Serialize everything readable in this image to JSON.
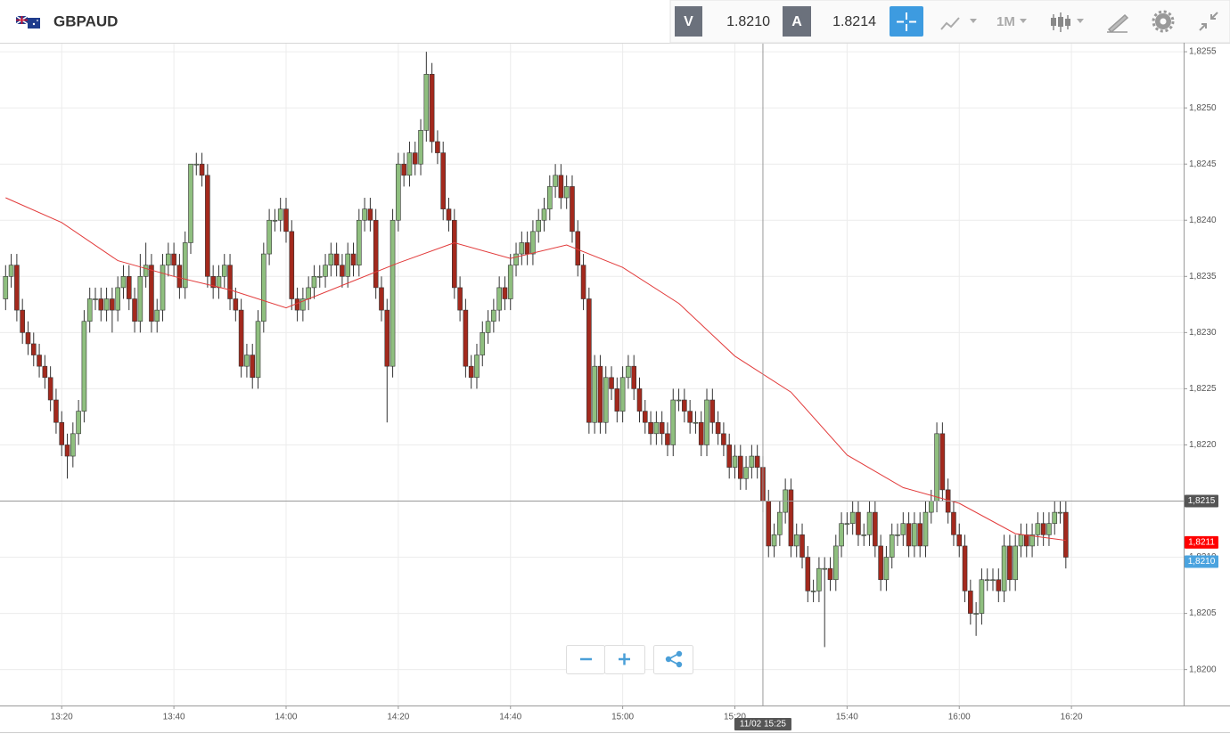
{
  "header": {
    "symbol": "GBPAUD",
    "sell_label": "V",
    "sell_price": "1.8210",
    "buy_label": "A",
    "buy_price": "1.8214",
    "timeframe": "1M"
  },
  "chart_data": {
    "type": "candlestick",
    "x": [
      "13:10",
      "13:11",
      "13:12",
      "13:13",
      "13:14",
      "13:15",
      "13:16",
      "13:17",
      "13:18",
      "13:19",
      "13:20",
      "13:21",
      "13:22",
      "13:23",
      "13:24",
      "13:25",
      "13:26",
      "13:27",
      "13:28",
      "13:29",
      "13:30",
      "13:31",
      "13:32",
      "13:33",
      "13:34",
      "13:35",
      "13:36",
      "13:37",
      "13:38",
      "13:39",
      "13:40",
      "13:41",
      "13:42",
      "13:43",
      "13:44",
      "13:45",
      "13:46",
      "13:47",
      "13:48",
      "13:49",
      "13:50",
      "13:51",
      "13:52",
      "13:53",
      "13:54",
      "13:55",
      "13:56",
      "13:57",
      "13:58",
      "13:59",
      "14:00",
      "14:01",
      "14:02",
      "14:03",
      "14:04",
      "14:05",
      "14:06",
      "14:07",
      "14:08",
      "14:09",
      "14:10",
      "14:11",
      "14:12",
      "14:13",
      "14:14",
      "14:15",
      "14:16",
      "14:17",
      "14:18",
      "14:19",
      "14:20",
      "14:21",
      "14:22",
      "14:23",
      "14:24",
      "14:25",
      "14:26",
      "14:27",
      "14:28",
      "14:29",
      "14:30",
      "14:31",
      "14:32",
      "14:33",
      "14:34",
      "14:35",
      "14:36",
      "14:37",
      "14:38",
      "14:39",
      "14:40",
      "14:41",
      "14:42",
      "14:43",
      "14:44",
      "14:45",
      "14:46",
      "14:47",
      "14:48",
      "14:49",
      "14:50",
      "14:51",
      "14:52",
      "14:53",
      "14:54",
      "14:55",
      "14:56",
      "14:57",
      "14:58",
      "14:59",
      "15:00",
      "15:01",
      "15:02",
      "15:03",
      "15:04",
      "15:05",
      "15:06",
      "15:07",
      "15:08",
      "15:09",
      "15:10",
      "15:11",
      "15:12",
      "15:13",
      "15:14",
      "15:15",
      "15:16",
      "15:17",
      "15:18",
      "15:19",
      "15:20",
      "15:21",
      "15:22",
      "15:23",
      "15:24",
      "15:25",
      "15:26",
      "15:27",
      "15:28",
      "15:29",
      "15:30",
      "15:31",
      "15:32",
      "15:33",
      "15:34",
      "15:35",
      "15:36",
      "15:37",
      "15:38",
      "15:39",
      "15:40",
      "15:41",
      "15:42",
      "15:43",
      "15:44",
      "15:45",
      "15:46",
      "15:47",
      "15:48",
      "15:49",
      "15:50",
      "15:51",
      "15:52",
      "15:53",
      "15:54",
      "15:55",
      "15:56",
      "15:57",
      "15:58",
      "15:59",
      "16:00",
      "16:01",
      "16:02",
      "16:03",
      "16:04",
      "16:05",
      "16:06",
      "16:07",
      "16:08",
      "16:09",
      "16:10",
      "16:11",
      "16:12",
      "16:13",
      "16:14",
      "16:15",
      "16:16",
      "16:17",
      "16:18",
      "16:19"
    ],
    "open": [
      1.8233,
      1.8235,
      1.8236,
      1.8232,
      1.823,
      1.8229,
      1.8228,
      1.8227,
      1.8226,
      1.8224,
      1.8222,
      1.822,
      1.8219,
      1.8221,
      1.8223,
      1.8231,
      1.8233,
      1.8233,
      1.8232,
      1.8233,
      1.8232,
      1.8234,
      1.8235,
      1.8233,
      1.8231,
      1.8235,
      1.8236,
      1.8231,
      1.8232,
      1.8236,
      1.8237,
      1.8236,
      1.8234,
      1.8238,
      1.8245,
      1.8245,
      1.8244,
      1.8235,
      1.8234,
      1.8235,
      1.8236,
      1.8233,
      1.8232,
      1.8227,
      1.8228,
      1.8226,
      1.8231,
      1.8237,
      1.824,
      1.824,
      1.8241,
      1.8239,
      1.8233,
      1.8232,
      1.8233,
      1.8234,
      1.8235,
      1.8235,
      1.8236,
      1.8237,
      1.8236,
      1.8235,
      1.8237,
      1.8236,
      1.824,
      1.8241,
      1.824,
      1.8234,
      1.8232,
      1.8227,
      1.824,
      1.8245,
      1.8244,
      1.8246,
      1.8245,
      1.8248,
      1.8253,
      1.8247,
      1.8246,
      1.8241,
      1.824,
      1.8234,
      1.8232,
      1.8227,
      1.8226,
      1.8228,
      1.823,
      1.8231,
      1.8232,
      1.8234,
      1.8233,
      1.8236,
      1.8237,
      1.8238,
      1.8237,
      1.8239,
      1.824,
      1.8241,
      1.8243,
      1.8244,
      1.8242,
      1.8243,
      1.8239,
      1.8236,
      1.8233,
      1.8222,
      1.8227,
      1.8222,
      1.8226,
      1.8225,
      1.8223,
      1.8226,
      1.8227,
      1.8225,
      1.8223,
      1.8222,
      1.8221,
      1.8222,
      1.8221,
      1.822,
      1.8224,
      1.8224,
      1.8223,
      1.8222,
      1.8222,
      1.822,
      1.8224,
      1.8222,
      1.8221,
      1.822,
      1.8218,
      1.8219,
      1.8217,
      1.8218,
      1.8219,
      1.8218,
      1.8215,
      1.8211,
      1.8212,
      1.8214,
      1.8216,
      1.8211,
      1.8212,
      1.821,
      1.8207,
      1.8207,
      1.8209,
      1.8209,
      1.8208,
      1.8211,
      1.8213,
      1.8213,
      1.8214,
      1.8212,
      1.8212,
      1.8214,
      1.8211,
      1.8208,
      1.821,
      1.8212,
      1.8212,
      1.8213,
      1.8211,
      1.8213,
      1.8211,
      1.8214,
      1.8215,
      1.8221,
      1.8216,
      1.8214,
      1.8212,
      1.8211,
      1.8207,
      1.8205,
      1.8205,
      1.8208,
      1.8208,
      1.8208,
      1.8207,
      1.8211,
      1.8208,
      1.8211,
      1.8212,
      1.8211,
      1.8212,
      1.8213,
      1.8212,
      1.8213,
      1.8214,
      1.8214
    ],
    "high": [
      1.8236,
      1.8237,
      1.8237,
      1.8233,
      1.8231,
      1.823,
      1.8229,
      1.8228,
      1.8227,
      1.8225,
      1.8223,
      1.8221,
      1.8222,
      1.8224,
      1.8232,
      1.8234,
      1.8234,
      1.8234,
      1.8234,
      1.8234,
      1.8235,
      1.8236,
      1.8236,
      1.8234,
      1.8237,
      1.8238,
      1.8237,
      1.8233,
      1.8237,
      1.8238,
      1.8238,
      1.8237,
      1.8239,
      1.8245,
      1.8246,
      1.8246,
      1.8245,
      1.8236,
      1.8236,
      1.8237,
      1.8237,
      1.8234,
      1.8233,
      1.8229,
      1.8229,
      1.8232,
      1.8238,
      1.8241,
      1.8241,
      1.8242,
      1.8242,
      1.824,
      1.8234,
      1.8234,
      1.8235,
      1.8236,
      1.8236,
      1.8237,
      1.8238,
      1.8238,
      1.8237,
      1.8238,
      1.8238,
      1.8241,
      1.8242,
      1.8242,
      1.8241,
      1.8235,
      1.8233,
      1.8241,
      1.8246,
      1.8246,
      1.8247,
      1.8247,
      1.8249,
      1.8255,
      1.8254,
      1.8248,
      1.8247,
      1.8242,
      1.8241,
      1.8235,
      1.8233,
      1.8228,
      1.8229,
      1.8231,
      1.8232,
      1.8233,
      1.8235,
      1.8235,
      1.8237,
      1.8238,
      1.8239,
      1.8239,
      1.824,
      1.8241,
      1.8242,
      1.8244,
      1.8245,
      1.8245,
      1.8244,
      1.8244,
      1.824,
      1.8237,
      1.8234,
      1.8228,
      1.8228,
      1.8227,
      1.8227,
      1.8226,
      1.8227,
      1.8228,
      1.8228,
      1.8226,
      1.8224,
      1.8223,
      1.8223,
      1.8223,
      1.8222,
      1.8225,
      1.8225,
      1.8225,
      1.8224,
      1.8223,
      1.8223,
      1.8225,
      1.8225,
      1.8223,
      1.8222,
      1.8221,
      1.822,
      1.822,
      1.8219,
      1.822,
      1.822,
      1.8219,
      1.8216,
      1.8213,
      1.8215,
      1.8217,
      1.8217,
      1.8213,
      1.8213,
      1.8211,
      1.8208,
      1.821,
      1.821,
      1.821,
      1.8212,
      1.8214,
      1.8214,
      1.8215,
      1.8215,
      1.8213,
      1.8215,
      1.8215,
      1.8212,
      1.8211,
      1.8213,
      1.8213,
      1.8214,
      1.8214,
      1.8214,
      1.8214,
      1.8215,
      1.8216,
      1.8222,
      1.8222,
      1.8217,
      1.8215,
      1.8213,
      1.8212,
      1.8208,
      1.8206,
      1.8209,
      1.8209,
      1.8209,
      1.8209,
      1.8212,
      1.8212,
      1.8212,
      1.8213,
      1.8213,
      1.8213,
      1.8214,
      1.8214,
      1.8214,
      1.8215,
      1.8215,
      1.8215
    ],
    "low": [
      1.8232,
      1.8234,
      1.8231,
      1.8229,
      1.8228,
      1.8227,
      1.8226,
      1.8225,
      1.8223,
      1.8221,
      1.8219,
      1.8217,
      1.8218,
      1.822,
      1.8222,
      1.823,
      1.8232,
      1.8231,
      1.8231,
      1.823,
      1.8231,
      1.8233,
      1.8232,
      1.823,
      1.823,
      1.8234,
      1.823,
      1.823,
      1.8231,
      1.8235,
      1.8235,
      1.8233,
      1.8233,
      1.8237,
      1.8244,
      1.8243,
      1.8234,
      1.8233,
      1.8233,
      1.8234,
      1.8232,
      1.8231,
      1.8226,
      1.8226,
      1.8225,
      1.8225,
      1.823,
      1.8236,
      1.8239,
      1.8239,
      1.8238,
      1.8232,
      1.8231,
      1.8231,
      1.8232,
      1.8233,
      1.8234,
      1.8234,
      1.8235,
      1.8235,
      1.8234,
      1.8234,
      1.8235,
      1.8235,
      1.8239,
      1.8239,
      1.8233,
      1.8231,
      1.8222,
      1.8226,
      1.8239,
      1.8243,
      1.8243,
      1.8244,
      1.8244,
      1.8247,
      1.8246,
      1.8245,
      1.824,
      1.8239,
      1.8233,
      1.8231,
      1.8226,
      1.8225,
      1.8225,
      1.8227,
      1.8229,
      1.823,
      1.8231,
      1.8232,
      1.8232,
      1.8235,
      1.8236,
      1.8236,
      1.8236,
      1.8238,
      1.8239,
      1.824,
      1.8242,
      1.8241,
      1.8241,
      1.8238,
      1.8235,
      1.8232,
      1.8221,
      1.8221,
      1.8221,
      1.8221,
      1.8224,
      1.8222,
      1.8222,
      1.8225,
      1.8224,
      1.8222,
      1.8221,
      1.822,
      1.822,
      1.822,
      1.8219,
      1.8219,
      1.8223,
      1.8222,
      1.8221,
      1.8221,
      1.8219,
      1.8219,
      1.8221,
      1.822,
      1.8219,
      1.8217,
      1.8217,
      1.8216,
      1.8216,
      1.8217,
      1.8217,
      1.8214,
      1.821,
      1.821,
      1.8211,
      1.8213,
      1.821,
      1.821,
      1.8209,
      1.8206,
      1.8206,
      1.8206,
      1.8202,
      1.8207,
      1.8207,
      1.821,
      1.8212,
      1.8212,
      1.8211,
      1.8211,
      1.8211,
      1.821,
      1.8207,
      1.8207,
      1.8209,
      1.8211,
      1.8211,
      1.821,
      1.821,
      1.821,
      1.821,
      1.8213,
      1.8214,
      1.8215,
      1.8213,
      1.8211,
      1.821,
      1.8206,
      1.8204,
      1.8203,
      1.8204,
      1.8207,
      1.8207,
      1.8206,
      1.8206,
      1.8207,
      1.8207,
      1.821,
      1.821,
      1.821,
      1.8211,
      1.8211,
      1.8211,
      1.8212,
      1.8213,
      1.8209
    ],
    "close": [
      1.8235,
      1.8236,
      1.8232,
      1.823,
      1.8229,
      1.8228,
      1.8227,
      1.8226,
      1.8224,
      1.8222,
      1.822,
      1.8219,
      1.8221,
      1.8223,
      1.8231,
      1.8233,
      1.8233,
      1.8232,
      1.8233,
      1.8232,
      1.8234,
      1.8235,
      1.8233,
      1.8231,
      1.8235,
      1.8236,
      1.8231,
      1.8232,
      1.8236,
      1.8237,
      1.8236,
      1.8234,
      1.8238,
      1.8245,
      1.8245,
      1.8244,
      1.8235,
      1.8234,
      1.8235,
      1.8236,
      1.8233,
      1.8232,
      1.8227,
      1.8228,
      1.8226,
      1.8231,
      1.8237,
      1.824,
      1.824,
      1.8241,
      1.8239,
      1.8233,
      1.8232,
      1.8233,
      1.8234,
      1.8235,
      1.8235,
      1.8236,
      1.8237,
      1.8236,
      1.8235,
      1.8237,
      1.8236,
      1.824,
      1.8241,
      1.824,
      1.8234,
      1.8232,
      1.8227,
      1.824,
      1.8245,
      1.8244,
      1.8246,
      1.8245,
      1.8248,
      1.8253,
      1.8247,
      1.8246,
      1.8241,
      1.824,
      1.8234,
      1.8232,
      1.8227,
      1.8226,
      1.8228,
      1.823,
      1.8231,
      1.8232,
      1.8234,
      1.8233,
      1.8236,
      1.8237,
      1.8238,
      1.8237,
      1.8239,
      1.824,
      1.8241,
      1.8243,
      1.8244,
      1.8242,
      1.8243,
      1.8239,
      1.8236,
      1.8233,
      1.8222,
      1.8227,
      1.8222,
      1.8226,
      1.8225,
      1.8223,
      1.8226,
      1.8227,
      1.8225,
      1.8223,
      1.8222,
      1.8221,
      1.8222,
      1.8221,
      1.822,
      1.8224,
      1.8224,
      1.8223,
      1.8222,
      1.8222,
      1.822,
      1.8224,
      1.8222,
      1.8221,
      1.822,
      1.8218,
      1.8219,
      1.8217,
      1.8218,
      1.8219,
      1.8218,
      1.8215,
      1.8211,
      1.8212,
      1.8214,
      1.8216,
      1.8211,
      1.8212,
      1.821,
      1.8207,
      1.8207,
      1.8209,
      1.8209,
      1.8208,
      1.8211,
      1.8213,
      1.8213,
      1.8214,
      1.8212,
      1.8212,
      1.8214,
      1.8211,
      1.8208,
      1.821,
      1.8212,
      1.8212,
      1.8213,
      1.8211,
      1.8213,
      1.8211,
      1.8214,
      1.8215,
      1.8221,
      1.8216,
      1.8214,
      1.8212,
      1.8211,
      1.8207,
      1.8205,
      1.8205,
      1.8208,
      1.8208,
      1.8208,
      1.8207,
      1.8211,
      1.8208,
      1.8211,
      1.8212,
      1.8211,
      1.8212,
      1.8213,
      1.8212,
      1.8213,
      1.8214,
      1.8214,
      1.821
    ],
    "up_color": "#8fbf7f",
    "down_color": "#a3291d",
    "wick_color": "#333333",
    "ma": {
      "color": "#e23b3b",
      "x": [
        "13:10",
        "13:20",
        "13:30",
        "13:40",
        "13:50",
        "14:00",
        "14:10",
        "14:20",
        "14:30",
        "14:40",
        "14:50",
        "15:00",
        "15:10",
        "15:20",
        "15:30",
        "15:40",
        "15:50",
        "16:00",
        "16:10",
        "16:19"
      ],
      "values": [
        1.8242,
        1.82398,
        1.82364,
        1.8235,
        1.82338,
        1.82322,
        1.82342,
        1.82362,
        1.8238,
        1.82366,
        1.82378,
        1.82358,
        1.82326,
        1.82279,
        1.82247,
        1.82191,
        1.82162,
        1.82148,
        1.82121,
        1.82115
      ]
    },
    "xlim": [
      "13:09",
      "16:40"
    ],
    "xticks": [
      "13:20",
      "13:40",
      "14:00",
      "14:20",
      "14:40",
      "15:00",
      "15:20",
      "15:40",
      "16:00",
      "16:20"
    ],
    "ylim": [
      1.81968,
      1.82558
    ],
    "yticks": [
      {
        "value": 1.82,
        "label": "1,8200"
      },
      {
        "value": 1.8205,
        "label": "1,8205"
      },
      {
        "value": 1.821,
        "label": "1,8210"
      },
      {
        "value": 1.8215,
        "label": "1,8215"
      },
      {
        "value": 1.822,
        "label": "1,8220"
      },
      {
        "value": 1.8225,
        "label": "1,8225"
      },
      {
        "value": 1.823,
        "label": "1,8230"
      },
      {
        "value": 1.8235,
        "label": "1,8235"
      },
      {
        "value": 1.824,
        "label": "1,8240"
      },
      {
        "value": 1.8245,
        "label": "1,8245"
      },
      {
        "value": 1.825,
        "label": "1,8250"
      },
      {
        "value": 1.8255,
        "label": "1,8255"
      }
    ],
    "grid": true,
    "crosshair": {
      "y": {
        "value": 1.8215,
        "label": "1,8215"
      },
      "x": {
        "value": "15:25",
        "label": "11/02 15:25"
      }
    },
    "price_tags": [
      {
        "value": 1.8211,
        "label": "1,8211",
        "color": "#ff0000"
      },
      {
        "value": 1.821,
        "label": "1,8210",
        "color": "#4aa3df"
      }
    ]
  }
}
